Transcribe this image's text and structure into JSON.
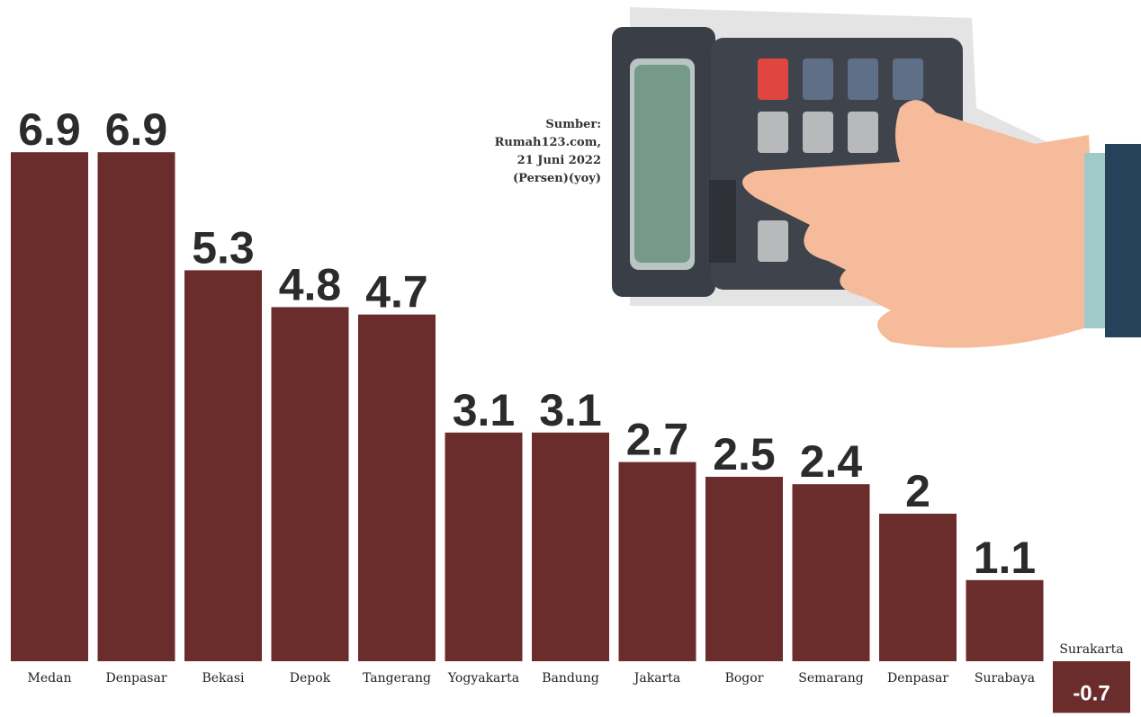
{
  "chart_data": {
    "type": "bar",
    "source": [
      "Sumber:",
      "Rumah123.com,",
      "21 Juni 2022",
      "(Persen)(yoy)"
    ],
    "categories": [
      "Medan",
      "Denpasar",
      "Bekasi",
      "Depok",
      "Tangerang",
      "Yogyakarta",
      "Bandung",
      "Jakarta",
      "Bogor",
      "Semarang",
      "Denpasar",
      "Surabaya",
      "Surakarta"
    ],
    "values": [
      6.9,
      6.9,
      5.3,
      4.8,
      4.7,
      3.1,
      3.1,
      2.7,
      2.5,
      2.4,
      2,
      1.1,
      -0.7
    ],
    "color": "#6b2d2c"
  }
}
